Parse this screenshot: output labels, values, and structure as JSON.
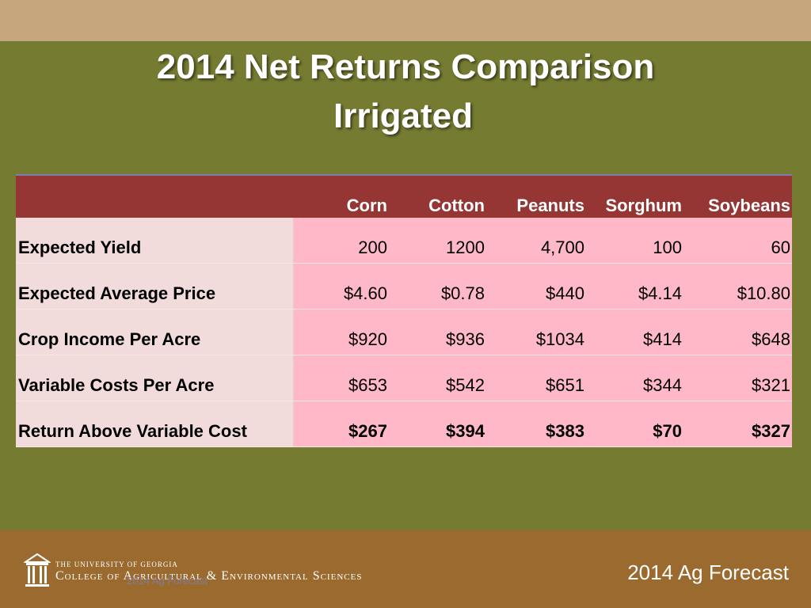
{
  "slide": {
    "title_line1": "2014 Net Returns Comparison",
    "title_line2": "Irrigated"
  },
  "table": {
    "columns": [
      "Corn",
      "Cotton",
      "Peanuts",
      "Sorghum",
      "Soybeans"
    ],
    "rows": [
      {
        "label": "Expected Yield",
        "values": [
          "200",
          "1200",
          "4,700",
          "100",
          "60"
        ]
      },
      {
        "label": "Expected Average Price",
        "values": [
          "$4.60",
          "$0.78",
          "$440",
          "$4.14",
          "$10.80"
        ]
      },
      {
        "label": "Crop Income Per Acre",
        "values": [
          "$920",
          "$936",
          "$1034",
          "$414",
          "$648"
        ]
      },
      {
        "label": "Variable Costs Per Acre",
        "values": [
          "$653",
          "$542",
          "$651",
          "$344",
          "$321"
        ]
      },
      {
        "label": "Return Above Variable Cost",
        "values": [
          "$267",
          "$394",
          "$383",
          "$70",
          "$327"
        ]
      }
    ]
  },
  "footer": {
    "university": "THE UNIVERSITY OF GEORGIA",
    "college": "College of Agricultural & Environmental Sciences",
    "ghost": "2014 Ag Forecast",
    "forecast": "2014 Ag Forecast"
  },
  "colors": {
    "background": "#767b32",
    "top_band": "#c6a77d",
    "header_row": "#953634",
    "label_cells": "#f2dcdb",
    "value_cells": "#ffb8c8",
    "footer": "#9b6a2f"
  }
}
